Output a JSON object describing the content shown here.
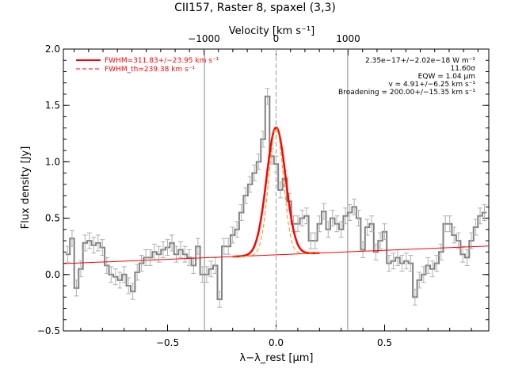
{
  "chart_data": {
    "type": "line",
    "title": "CII157, Raster 8, spaxel (3,3)",
    "xlabel": "λ−λ_rest [μm]",
    "ylabel": "Flux density [Jy]",
    "top_axis_label": "Velocity [km s⁻¹]",
    "xlim": [
      -0.98,
      0.98
    ],
    "ylim": [
      -0.5,
      2.0
    ],
    "x_ticks": [
      -0.5,
      0.0,
      0.5
    ],
    "x_tick_labels": [
      "−0.5",
      "0.0",
      "0.5"
    ],
    "y_ticks": [
      -0.5,
      0.0,
      0.5,
      1.0,
      1.5,
      2.0
    ],
    "y_tick_labels": [
      "−0.5",
      "0.0",
      "0.5",
      "1.0",
      "1.5",
      "2.0"
    ],
    "top_ticks_kms": [
      -1000,
      0,
      1000
    ],
    "top_tick_labels": [
      "−1000",
      "0",
      "1000"
    ],
    "kms_per_um": 3010,
    "vertical_lines_x": [
      -0.33,
      0.0,
      0.33
    ],
    "series": [
      {
        "name": "spectrum",
        "style": "histogram",
        "color": "#808080",
        "x": [
          -0.96,
          -0.94,
          -0.92,
          -0.9,
          -0.88,
          -0.86,
          -0.84,
          -0.82,
          -0.8,
          -0.78,
          -0.76,
          -0.74,
          -0.72,
          -0.7,
          -0.68,
          -0.66,
          -0.64,
          -0.62,
          -0.6,
          -0.58,
          -0.56,
          -0.54,
          -0.52,
          -0.5,
          -0.48,
          -0.46,
          -0.44,
          -0.42,
          -0.4,
          -0.38,
          -0.36,
          -0.34,
          -0.32,
          -0.3,
          -0.28,
          -0.26,
          -0.24,
          -0.22,
          -0.2,
          -0.18,
          -0.16,
          -0.14,
          -0.12,
          -0.1,
          -0.08,
          -0.06,
          -0.04,
          -0.02,
          0.0,
          0.02,
          0.04,
          0.06,
          0.08,
          0.1,
          0.12,
          0.14,
          0.16,
          0.18,
          0.2,
          0.22,
          0.24,
          0.26,
          0.28,
          0.3,
          0.32,
          0.34,
          0.36,
          0.38,
          0.4,
          0.42,
          0.44,
          0.46,
          0.48,
          0.5,
          0.52,
          0.54,
          0.56,
          0.58,
          0.6,
          0.62,
          0.64,
          0.66,
          0.68,
          0.7,
          0.72,
          0.74,
          0.76,
          0.78,
          0.8,
          0.82,
          0.84,
          0.86,
          0.88,
          0.9,
          0.92,
          0.94,
          0.96
        ],
        "y": [
          0.18,
          0.32,
          -0.12,
          0.05,
          0.28,
          0.3,
          0.26,
          0.28,
          0.24,
          0.08,
          0.0,
          -0.02,
          -0.05,
          0.0,
          -0.1,
          -0.15,
          0.02,
          0.1,
          0.15,
          0.15,
          0.2,
          0.18,
          0.22,
          0.24,
          0.28,
          0.18,
          0.22,
          0.18,
          0.15,
          0.08,
          0.25,
          0.0,
          0.0,
          0.05,
          0.08,
          -0.22,
          0.25,
          0.25,
          0.35,
          0.4,
          0.55,
          0.7,
          0.8,
          0.9,
          1.0,
          1.2,
          1.58,
          1.05,
          0.98,
          0.75,
          0.85,
          0.65,
          0.45,
          0.45,
          0.5,
          0.52,
          0.3,
          0.3,
          0.45,
          0.56,
          0.4,
          0.5,
          0.45,
          0.4,
          0.52,
          0.55,
          0.6,
          0.5,
          0.22,
          0.42,
          0.45,
          0.2,
          0.3,
          0.38,
          0.1,
          0.12,
          0.15,
          0.1,
          0.12,
          0.1,
          -0.2,
          -0.05,
          0.0,
          0.08,
          0.05,
          0.1,
          0.2,
          0.45,
          0.45,
          0.35,
          0.3,
          0.18,
          0.15,
          0.3,
          0.42,
          0.52,
          0.55
        ],
        "error": 0.07
      },
      {
        "name": "FWHM=311.83+/−23.95 km s⁻¹",
        "style": "solid",
        "color": "#ff0000",
        "continuum": {
          "slope": 0.08,
          "intercept": 0.175
        },
        "peak": 1.13,
        "center": 0.0,
        "fwhm_um": 0.1036
      },
      {
        "name": "FWHM_th=239.38 km s⁻¹",
        "style": "dashed",
        "color": "#ff8c00",
        "continuum": {
          "slope": 0.08,
          "intercept": 0.175
        },
        "peak": 1.13,
        "center": 0.0,
        "fwhm_um": 0.0795
      }
    ],
    "annotations": [
      "2.35e−17+/−2.02e−18 W m⁻²",
      "11.60σ",
      "EQW = 1.04 μm",
      "v = 4.91+/−6.25 km s⁻¹",
      "Broadening = 200.00+/−15.35 km s⁻¹"
    ],
    "legend_position": "top-left",
    "grid": false
  }
}
